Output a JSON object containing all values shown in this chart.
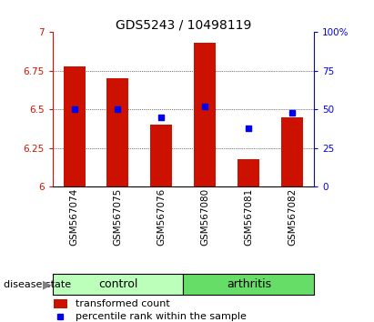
{
  "title": "GDS5243 / 10498119",
  "categories": [
    "GSM567074",
    "GSM567075",
    "GSM567076",
    "GSM567080",
    "GSM567081",
    "GSM567082"
  ],
  "bar_values": [
    6.78,
    6.7,
    6.4,
    6.93,
    6.18,
    6.45
  ],
  "bar_base": 6.0,
  "percentile_values": [
    50,
    50,
    45,
    52,
    38,
    48
  ],
  "bar_color": "#cc1100",
  "marker_color": "#0000ee",
  "left_ylim": [
    6.0,
    7.0
  ],
  "right_ylim": [
    0,
    100
  ],
  "left_yticks": [
    6.0,
    6.25,
    6.5,
    6.75,
    7.0
  ],
  "left_yticklabels": [
    "6",
    "6.25",
    "6.5",
    "6.75",
    "7"
  ],
  "right_yticks": [
    0,
    25,
    50,
    75,
    100
  ],
  "right_yticklabels": [
    "0",
    "25",
    "50",
    "75",
    "100%"
  ],
  "control_color": "#bbffbb",
  "arthritis_color": "#66dd66",
  "left_axis_color": "#cc1100",
  "right_axis_color": "#0000ee",
  "grid_color": "black",
  "bar_width": 0.5,
  "disease_label": "disease state",
  "legend_bar_label": "transformed count",
  "legend_marker_label": "percentile rank within the sample",
  "tick_label_fontsize": 7.5,
  "title_fontsize": 10,
  "group_fontsize": 9,
  "legend_fontsize": 8
}
